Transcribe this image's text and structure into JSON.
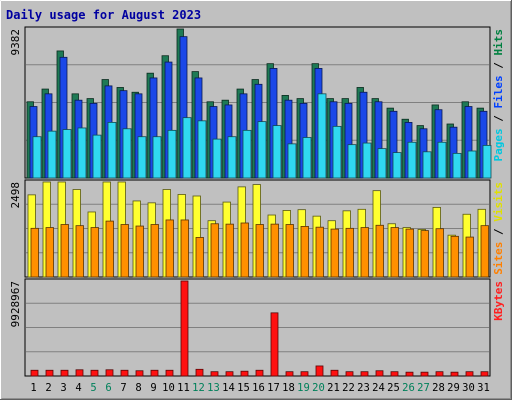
{
  "chart_data": {
    "type": "bar",
    "title": "Daily usage for August 2023",
    "categories": [
      "1",
      "2",
      "3",
      "4",
      "5",
      "6",
      "7",
      "8",
      "9",
      "10",
      "11",
      "12",
      "13",
      "14",
      "15",
      "16",
      "17",
      "18",
      "19",
      "20",
      "21",
      "22",
      "23",
      "24",
      "25",
      "26",
      "27",
      "28",
      "29",
      "30",
      "31"
    ],
    "weekend_days": [
      "5",
      "6",
      "12",
      "13",
      "19",
      "20",
      "26",
      "27"
    ],
    "panels": [
      {
        "id": "hits-files-pages",
        "ymax": 9382,
        "ymax_label": "9382",
        "legend": [
          {
            "text": "Pages",
            "color": "#00c8e0"
          },
          {
            "text": "Files",
            "color": "#0040ff"
          },
          {
            "text": "Hits",
            "color": "#008040"
          }
        ],
        "series": [
          {
            "name": "Hits",
            "color": "#1e7a55",
            "values": [
              4800,
              5600,
              8000,
              5300,
              5000,
              6200,
              5700,
              5400,
              6600,
              7700,
              9382,
              6700,
              4800,
              4900,
              5600,
              6200,
              7200,
              5200,
              5000,
              7200,
              5000,
              5000,
              5700,
              5000,
              4400,
              3700,
              3300,
              4600,
              3400,
              4800,
              4400
            ]
          },
          {
            "name": "Files",
            "color": "#1a48e8",
            "values": [
              4500,
              5300,
              7600,
              4900,
              4700,
              5800,
              5500,
              5300,
              6300,
              7300,
              8900,
              6300,
              4500,
              4600,
              5300,
              5900,
              6900,
              4900,
              4700,
              6900,
              4800,
              4700,
              5400,
              4800,
              4200,
              3500,
              3100,
              4300,
              3200,
              4500,
              4200
            ]
          },
          {
            "name": "Pages",
            "color": "#30d8f0",
            "values": [
              2600,
              2950,
              3050,
              3150,
              2700,
              3500,
              3100,
              2600,
              2600,
              3000,
              3800,
              3600,
              2450,
              2600,
              3000,
              3550,
              3300,
              2150,
              2550,
              5300,
              3250,
              2100,
              2200,
              1850,
              1600,
              2250,
              1650,
              2250,
              1550,
              1700,
              2050
            ]
          }
        ]
      },
      {
        "id": "visits-sites",
        "ymax": 2498,
        "ymax_label": "2498",
        "legend": [
          {
            "text": "Sites",
            "color": "#ff8000"
          },
          {
            "text": "Visits",
            "color": "#e0e000"
          }
        ],
        "series": [
          {
            "name": "Visits",
            "color": "#ffff30",
            "values": [
              2160,
              2498,
              2498,
              2300,
              1710,
              2498,
              2498,
              2000,
              1950,
              2300,
              2170,
              2130,
              1480,
              1970,
              2370,
              2430,
              1630,
              1750,
              1770,
              1600,
              1480,
              1740,
              1780,
              2270,
              1400,
              1300,
              1250,
              1830,
              1100,
              1650,
              1780
            ]
          },
          {
            "name": "Sites",
            "color": "#ff9000",
            "values": [
              1280,
              1300,
              1380,
              1350,
              1300,
              1470,
              1380,
              1340,
              1380,
              1500,
              1500,
              1040,
              1400,
              1390,
              1420,
              1380,
              1390,
              1380,
              1330,
              1310,
              1260,
              1280,
              1300,
              1360,
              1300,
              1260,
              1220,
              1270,
              1070,
              1050,
              1350
            ]
          }
        ]
      },
      {
        "id": "kbytes",
        "ymax": 9928967,
        "ymax_label": "9928967",
        "legend": [
          {
            "text": "KBytes",
            "color": "#ff2020"
          }
        ],
        "series": [
          {
            "name": "KBytes",
            "color": "#ff1010",
            "values": [
              600000,
              600000,
              600000,
              650000,
              600000,
              650000,
              600000,
              550000,
              600000,
              600000,
              9928967,
              700000,
              450000,
              450000,
              500000,
              600000,
              6600000,
              450000,
              450000,
              1050000,
              600000,
              450000,
              450000,
              550000,
              450000,
              400000,
              400000,
              450000,
              400000,
              450000,
              450000
            ]
          }
        ]
      }
    ]
  }
}
